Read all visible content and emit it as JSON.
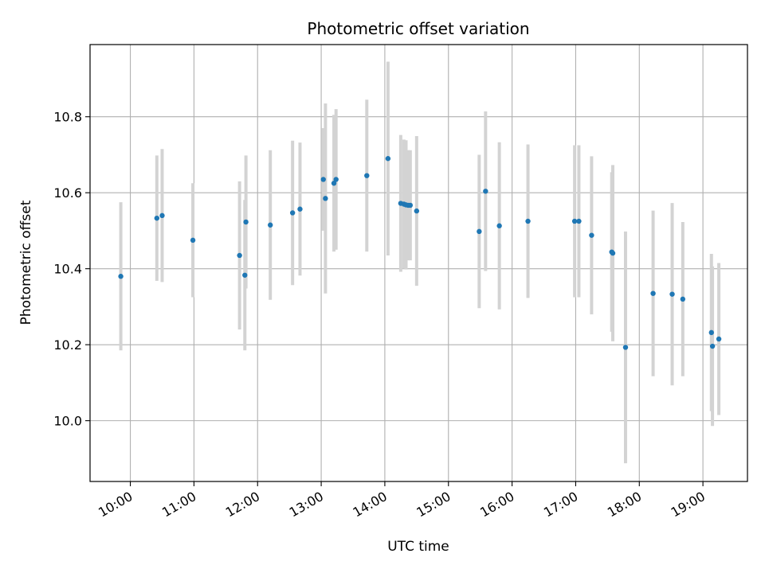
{
  "chart_data": {
    "type": "scatter",
    "title": "Photometric offset variation",
    "xlabel": "UTC time",
    "ylabel": "Photometric offset",
    "grid": true,
    "x_ticks": [
      "10:00",
      "11:00",
      "12:00",
      "13:00",
      "14:00",
      "15:00",
      "16:00",
      "17:00",
      "18:00",
      "19:00"
    ],
    "y_ticks": [
      "10.0",
      "10.2",
      "10.4",
      "10.6",
      "10.8"
    ],
    "xlim": [
      "09:22",
      "19:42"
    ],
    "ylim": [
      9.84,
      10.99
    ],
    "point_color": "#1f77b4",
    "errorbar_color": "#d3d3d3",
    "points": [
      {
        "x": "09:51",
        "y": 10.38,
        "err": 0.195
      },
      {
        "x": "10:25",
        "y": 10.533,
        "err": 0.165
      },
      {
        "x": "10:30",
        "y": 10.54,
        "err": 0.175
      },
      {
        "x": "10:59",
        "y": 10.475,
        "err": 0.15
      },
      {
        "x": "11:43",
        "y": 10.435,
        "err": 0.195
      },
      {
        "x": "11:48",
        "y": 10.383,
        "err": 0.198
      },
      {
        "x": "11:49",
        "y": 10.523,
        "err": 0.175
      },
      {
        "x": "12:12",
        "y": 10.515,
        "err": 0.197
      },
      {
        "x": "12:33",
        "y": 10.547,
        "err": 0.19
      },
      {
        "x": "12:40",
        "y": 10.557,
        "err": 0.175
      },
      {
        "x": "13:02",
        "y": 10.635,
        "err": 0.135
      },
      {
        "x": "13:04",
        "y": 10.585,
        "err": 0.25
      },
      {
        "x": "13:12",
        "y": 10.625,
        "err": 0.18
      },
      {
        "x": "13:14",
        "y": 10.635,
        "err": 0.185
      },
      {
        "x": "13:43",
        "y": 10.645,
        "err": 0.2
      },
      {
        "x": "14:03",
        "y": 10.69,
        "err": 0.255
      },
      {
        "x": "14:15",
        "y": 10.572,
        "err": 0.18
      },
      {
        "x": "14:18",
        "y": 10.57,
        "err": 0.17
      },
      {
        "x": "14:20",
        "y": 10.568,
        "err": 0.17
      },
      {
        "x": "14:22",
        "y": 10.567,
        "err": 0.145
      },
      {
        "x": "14:24",
        "y": 10.567,
        "err": 0.145
      },
      {
        "x": "14:30",
        "y": 10.552,
        "err": 0.197
      },
      {
        "x": "15:29",
        "y": 10.498,
        "err": 0.202
      },
      {
        "x": "15:35",
        "y": 10.604,
        "err": 0.21
      },
      {
        "x": "15:48",
        "y": 10.513,
        "err": 0.22
      },
      {
        "x": "16:15",
        "y": 10.525,
        "err": 0.202
      },
      {
        "x": "16:59",
        "y": 10.525,
        "err": 0.2
      },
      {
        "x": "17:03",
        "y": 10.525,
        "err": 0.2
      },
      {
        "x": "17:15",
        "y": 10.488,
        "err": 0.208
      },
      {
        "x": "17:34",
        "y": 10.444,
        "err": 0.21
      },
      {
        "x": "17:35",
        "y": 10.441,
        "err": 0.232
      },
      {
        "x": "17:47",
        "y": 10.193,
        "err": 0.305
      },
      {
        "x": "18:13",
        "y": 10.335,
        "err": 0.218
      },
      {
        "x": "18:31",
        "y": 10.333,
        "err": 0.24
      },
      {
        "x": "18:41",
        "y": 10.32,
        "err": 0.203
      },
      {
        "x": "19:08",
        "y": 10.232,
        "err": 0.207
      },
      {
        "x": "19:09",
        "y": 10.196,
        "err": 0.21
      },
      {
        "x": "19:15",
        "y": 10.215,
        "err": 0.2
      }
    ]
  }
}
